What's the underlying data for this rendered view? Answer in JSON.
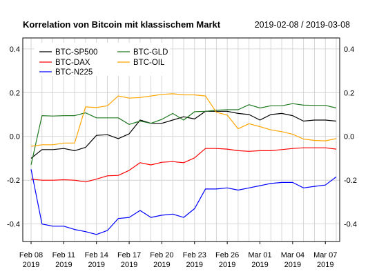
{
  "chart_data": {
    "type": "line",
    "title": "Korrelation von Bitcoin mit klassischem Markt",
    "date_range": "2019-02-08 / 2019-03-08",
    "ylim": [
      -0.48,
      0.45
    ],
    "y_ticks": [
      -0.4,
      -0.2,
      0.0,
      0.2,
      0.4
    ],
    "y_tick_labels": [
      "-0.4",
      "-0.2",
      "0.0",
      "0.2",
      "0.4"
    ],
    "x_dates": [
      "2019-02-08",
      "2019-02-09",
      "2019-02-10",
      "2019-02-11",
      "2019-02-12",
      "2019-02-13",
      "2019-02-14",
      "2019-02-15",
      "2019-02-16",
      "2019-02-17",
      "2019-02-18",
      "2019-02-19",
      "2019-02-20",
      "2019-02-21",
      "2019-02-22",
      "2019-02-23",
      "2019-02-24",
      "2019-02-25",
      "2019-02-26",
      "2019-02-27",
      "2019-02-28",
      "2019-03-01",
      "2019-03-02",
      "2019-03-03",
      "2019-03-04",
      "2019-03-05",
      "2019-03-06",
      "2019-03-07",
      "2019-03-08"
    ],
    "x_ticks": [
      {
        "date": "2019-02-08",
        "line1": "Feb 08",
        "line2": "2019"
      },
      {
        "date": "2019-02-11",
        "line1": "Feb 11",
        "line2": "2019"
      },
      {
        "date": "2019-02-14",
        "line1": "Feb 14",
        "line2": "2019"
      },
      {
        "date": "2019-02-17",
        "line1": "Feb 17",
        "line2": "2019"
      },
      {
        "date": "2019-02-20",
        "line1": "Feb 20",
        "line2": "2019"
      },
      {
        "date": "2019-02-23",
        "line1": "Feb 23",
        "line2": "2019"
      },
      {
        "date": "2019-02-26",
        "line1": "Feb 26",
        "line2": "2019"
      },
      {
        "date": "2019-03-01",
        "line1": "Mar 01",
        "line2": "2019"
      },
      {
        "date": "2019-03-04",
        "line1": "Mar 04",
        "line2": "2019"
      },
      {
        "date": "2019-03-07",
        "line1": "Mar 07",
        "line2": "2019"
      }
    ],
    "grid": true,
    "legend_position": "top",
    "series": [
      {
        "name": "BTC-SP500",
        "color": "#000000",
        "values": [
          -0.1,
          -0.06,
          -0.06,
          -0.055,
          -0.065,
          -0.05,
          0.005,
          0.008,
          -0.01,
          0.012,
          0.075,
          0.06,
          0.06,
          0.075,
          0.09,
          0.08,
          0.115,
          0.115,
          0.115,
          0.105,
          0.1,
          0.075,
          0.1,
          0.105,
          0.095,
          0.07,
          0.075,
          0.075,
          0.07
        ]
      },
      {
        "name": "BTC-GLD",
        "color": "#1f7a1f",
        "values": [
          -0.13,
          0.095,
          0.093,
          0.095,
          0.095,
          0.108,
          0.085,
          0.085,
          0.085,
          0.055,
          0.07,
          0.06,
          0.078,
          0.105,
          0.075,
          0.113,
          0.115,
          0.12,
          0.122,
          0.122,
          0.145,
          0.13,
          0.14,
          0.14,
          0.15,
          0.143,
          0.142,
          0.142,
          0.13
        ]
      },
      {
        "name": "BTC-DAX",
        "color": "#ff0000",
        "values": [
          -0.195,
          -0.2,
          -0.2,
          -0.198,
          -0.2,
          -0.208,
          -0.195,
          -0.18,
          -0.178,
          -0.155,
          -0.12,
          -0.13,
          -0.118,
          -0.115,
          -0.12,
          -0.098,
          -0.055,
          -0.055,
          -0.058,
          -0.065,
          -0.068,
          -0.065,
          -0.065,
          -0.06,
          -0.055,
          -0.052,
          -0.052,
          -0.052,
          -0.058
        ]
      },
      {
        "name": "BTC-OIL",
        "color": "#ffa500",
        "values": [
          -0.045,
          -0.038,
          -0.038,
          -0.03,
          -0.03,
          0.135,
          0.132,
          0.14,
          0.185,
          0.175,
          0.178,
          0.185,
          0.192,
          0.195,
          0.19,
          0.19,
          0.185,
          0.11,
          0.098,
          0.035,
          0.058,
          0.045,
          0.03,
          0.022,
          0.01,
          -0.012,
          -0.018,
          -0.02,
          -0.01
        ]
      },
      {
        "name": "BTC-N225",
        "color": "#0000ff",
        "values": [
          -0.15,
          -0.4,
          -0.41,
          -0.41,
          -0.425,
          -0.435,
          -0.448,
          -0.43,
          -0.375,
          -0.37,
          -0.338,
          -0.37,
          -0.36,
          -0.355,
          -0.37,
          -0.33,
          -0.24,
          -0.24,
          -0.235,
          -0.245,
          -0.235,
          -0.225,
          -0.215,
          -0.21,
          -0.21,
          -0.235,
          -0.228,
          -0.222,
          -0.185
        ]
      }
    ]
  }
}
